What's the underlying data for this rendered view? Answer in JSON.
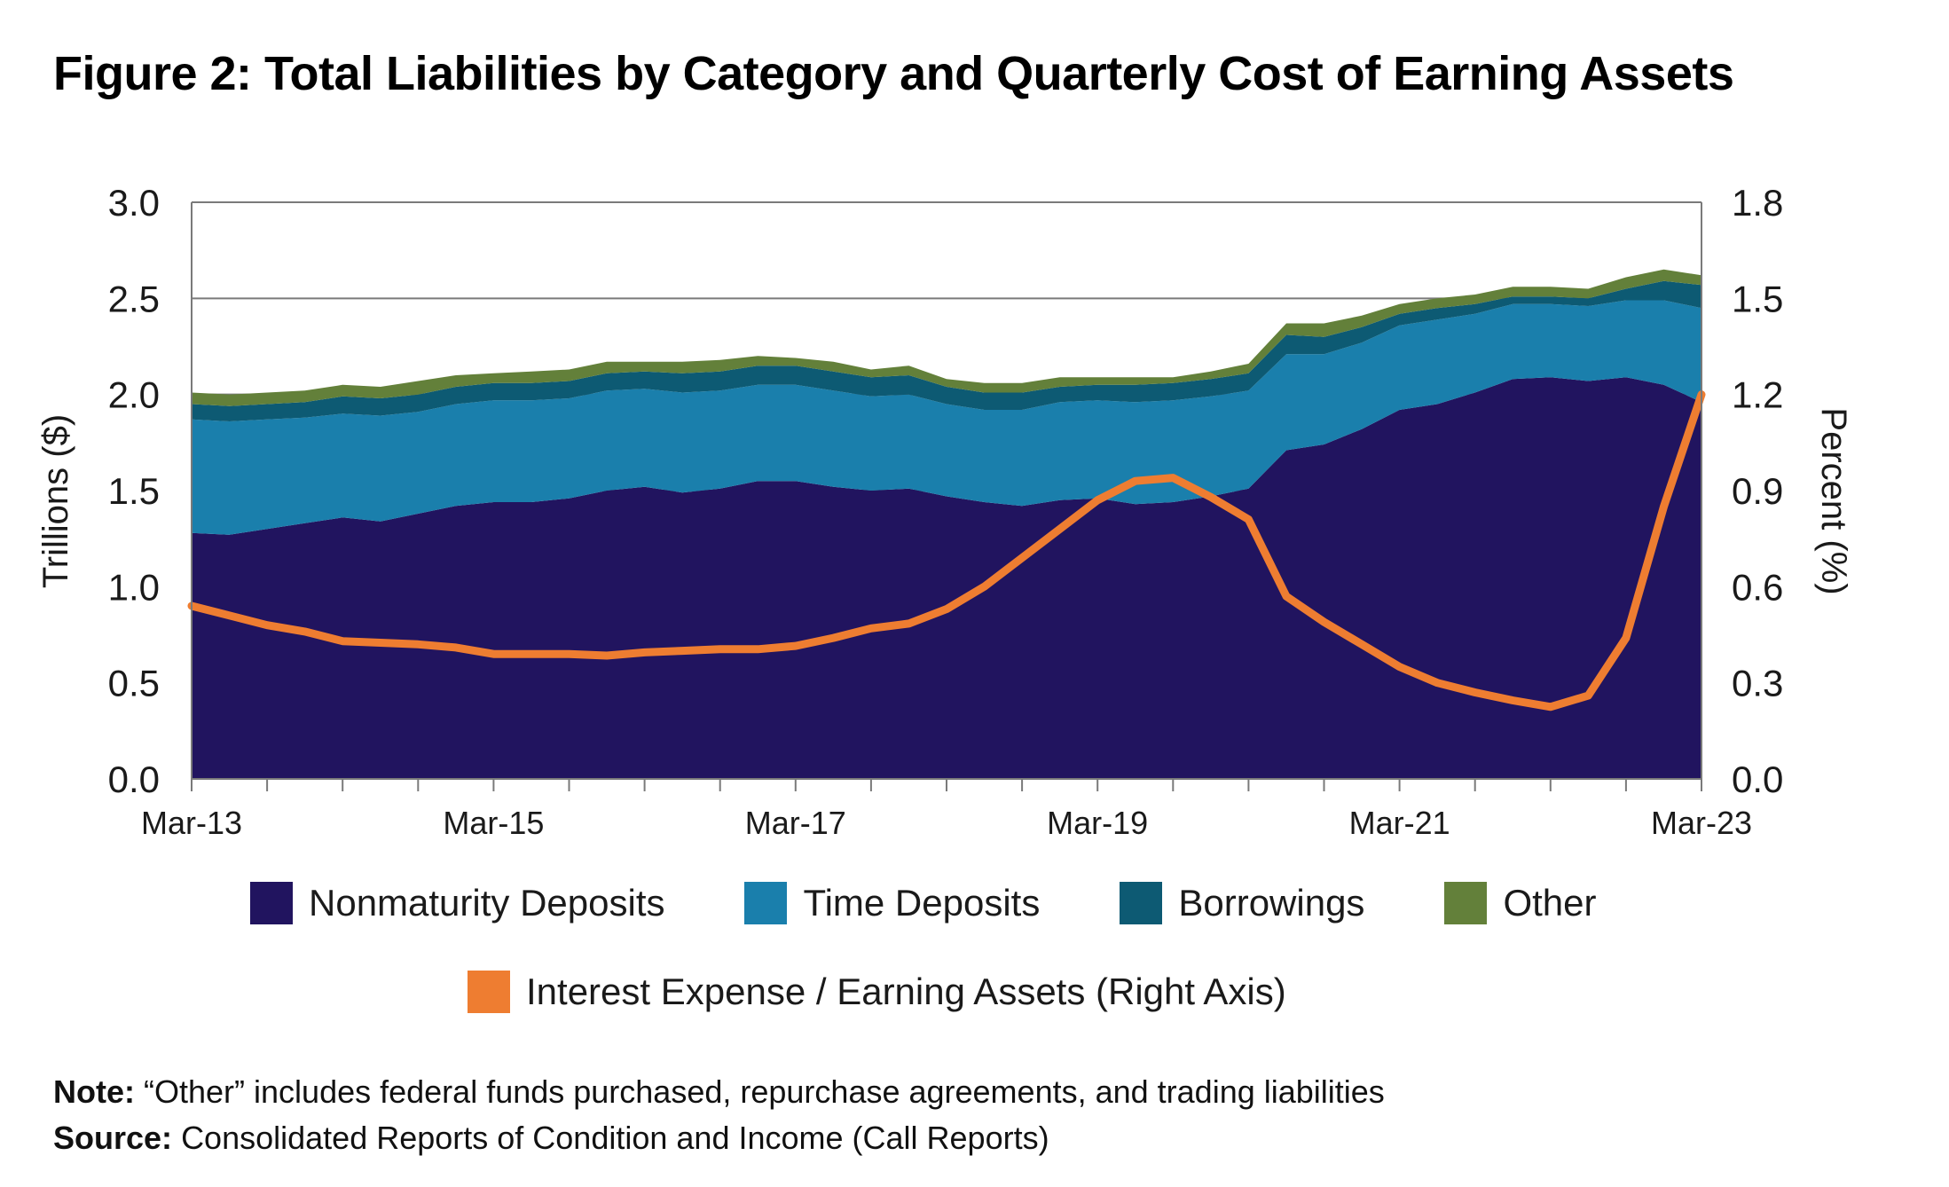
{
  "title": "Figure 2: Total Liabilities by Category and Quarterly Cost of Earning Assets",
  "note_label": "Note:",
  "note_text": "“Other” includes federal funds purchased, repurchase agreements, and trading liabilities",
  "source_label": "Source:",
  "source_text": "Consolidated Reports of Condition and Income (Call Reports)",
  "chart_data": {
    "type": "area",
    "title": "Figure 2: Total Liabilities by Category and Quarterly Cost of Earning Assets",
    "ylabel": "Trillions ($)",
    "y2label": "Percent (%)",
    "ylim": [
      0,
      3.0
    ],
    "y2lim": [
      0,
      1.8
    ],
    "yticks": [
      "0.0",
      "0.5",
      "1.0",
      "1.5",
      "2.0",
      "2.5",
      "3.0"
    ],
    "y2ticks": [
      "0.0",
      "0.3",
      "0.6",
      "0.9",
      "1.2",
      "1.5",
      "1.8"
    ],
    "xticklabels": [
      "Mar-13",
      "Mar-15",
      "Mar-17",
      "Mar-19",
      "Mar-21",
      "Mar-23"
    ],
    "grid": "horizontal",
    "legend_position": "bottom",
    "x": [
      "Mar-13",
      "Jun-13",
      "Sep-13",
      "Dec-13",
      "Mar-14",
      "Jun-14",
      "Sep-14",
      "Dec-14",
      "Mar-15",
      "Jun-15",
      "Sep-15",
      "Dec-15",
      "Mar-16",
      "Jun-16",
      "Sep-16",
      "Dec-16",
      "Mar-17",
      "Jun-17",
      "Sep-17",
      "Dec-17",
      "Mar-18",
      "Jun-18",
      "Sep-18",
      "Dec-18",
      "Mar-19",
      "Jun-19",
      "Sep-19",
      "Dec-19",
      "Mar-20",
      "Jun-20",
      "Sep-20",
      "Dec-20",
      "Mar-21",
      "Jun-21",
      "Sep-21",
      "Dec-21",
      "Mar-22",
      "Jun-22",
      "Sep-22",
      "Dec-22",
      "Mar-23"
    ],
    "series": [
      {
        "name": "Nonmaturity Deposits",
        "type": "area",
        "axis": "left",
        "color": "#21145f",
        "values": [
          1.28,
          1.27,
          1.3,
          1.33,
          1.36,
          1.34,
          1.38,
          1.42,
          1.44,
          1.44,
          1.46,
          1.5,
          1.52,
          1.49,
          1.51,
          1.55,
          1.55,
          1.52,
          1.5,
          1.51,
          1.47,
          1.44,
          1.42,
          1.45,
          1.46,
          1.43,
          1.44,
          1.47,
          1.51,
          1.71,
          1.74,
          1.82,
          1.92,
          1.95,
          2.01,
          2.08,
          2.09,
          2.07,
          2.09,
          2.05,
          1.96
        ]
      },
      {
        "name": "Time Deposits",
        "type": "area",
        "axis": "left",
        "color": "#1a7fac",
        "values": [
          0.59,
          0.59,
          0.57,
          0.55,
          0.54,
          0.55,
          0.53,
          0.53,
          0.53,
          0.53,
          0.52,
          0.52,
          0.51,
          0.52,
          0.51,
          0.5,
          0.5,
          0.5,
          0.49,
          0.49,
          0.48,
          0.48,
          0.5,
          0.51,
          0.51,
          0.53,
          0.53,
          0.52,
          0.51,
          0.5,
          0.47,
          0.45,
          0.44,
          0.44,
          0.41,
          0.39,
          0.38,
          0.39,
          0.4,
          0.44,
          0.49
        ]
      },
      {
        "name": "Borrowings",
        "type": "area",
        "axis": "left",
        "color": "#0d5a73",
        "values": [
          0.08,
          0.08,
          0.08,
          0.08,
          0.09,
          0.09,
          0.09,
          0.09,
          0.09,
          0.09,
          0.09,
          0.09,
          0.09,
          0.1,
          0.1,
          0.1,
          0.1,
          0.1,
          0.1,
          0.1,
          0.09,
          0.09,
          0.09,
          0.08,
          0.08,
          0.09,
          0.09,
          0.09,
          0.09,
          0.1,
          0.09,
          0.08,
          0.06,
          0.06,
          0.05,
          0.04,
          0.04,
          0.04,
          0.06,
          0.1,
          0.12
        ]
      },
      {
        "name": "Other",
        "type": "area",
        "axis": "left",
        "color": "#63803a",
        "values": [
          0.06,
          0.06,
          0.06,
          0.06,
          0.06,
          0.06,
          0.07,
          0.06,
          0.05,
          0.06,
          0.06,
          0.06,
          0.05,
          0.06,
          0.06,
          0.05,
          0.04,
          0.05,
          0.04,
          0.05,
          0.04,
          0.05,
          0.05,
          0.05,
          0.04,
          0.04,
          0.03,
          0.04,
          0.05,
          0.06,
          0.07,
          0.06,
          0.05,
          0.05,
          0.05,
          0.05,
          0.05,
          0.05,
          0.06,
          0.06,
          0.05
        ]
      },
      {
        "name": "Interest Expense / Earning Assets (Right Axis)",
        "type": "line",
        "axis": "right",
        "color": "#ee7d31",
        "values": [
          0.54,
          0.51,
          0.48,
          0.46,
          0.43,
          0.425,
          0.42,
          0.41,
          0.39,
          0.39,
          0.39,
          0.385,
          0.395,
          0.4,
          0.405,
          0.405,
          0.415,
          0.44,
          0.47,
          0.485,
          0.53,
          0.6,
          0.69,
          0.78,
          0.87,
          0.93,
          0.94,
          0.88,
          0.81,
          0.57,
          0.49,
          0.42,
          0.35,
          0.3,
          0.27,
          0.245,
          0.225,
          0.26,
          0.44,
          0.85,
          1.2
        ]
      }
    ]
  }
}
